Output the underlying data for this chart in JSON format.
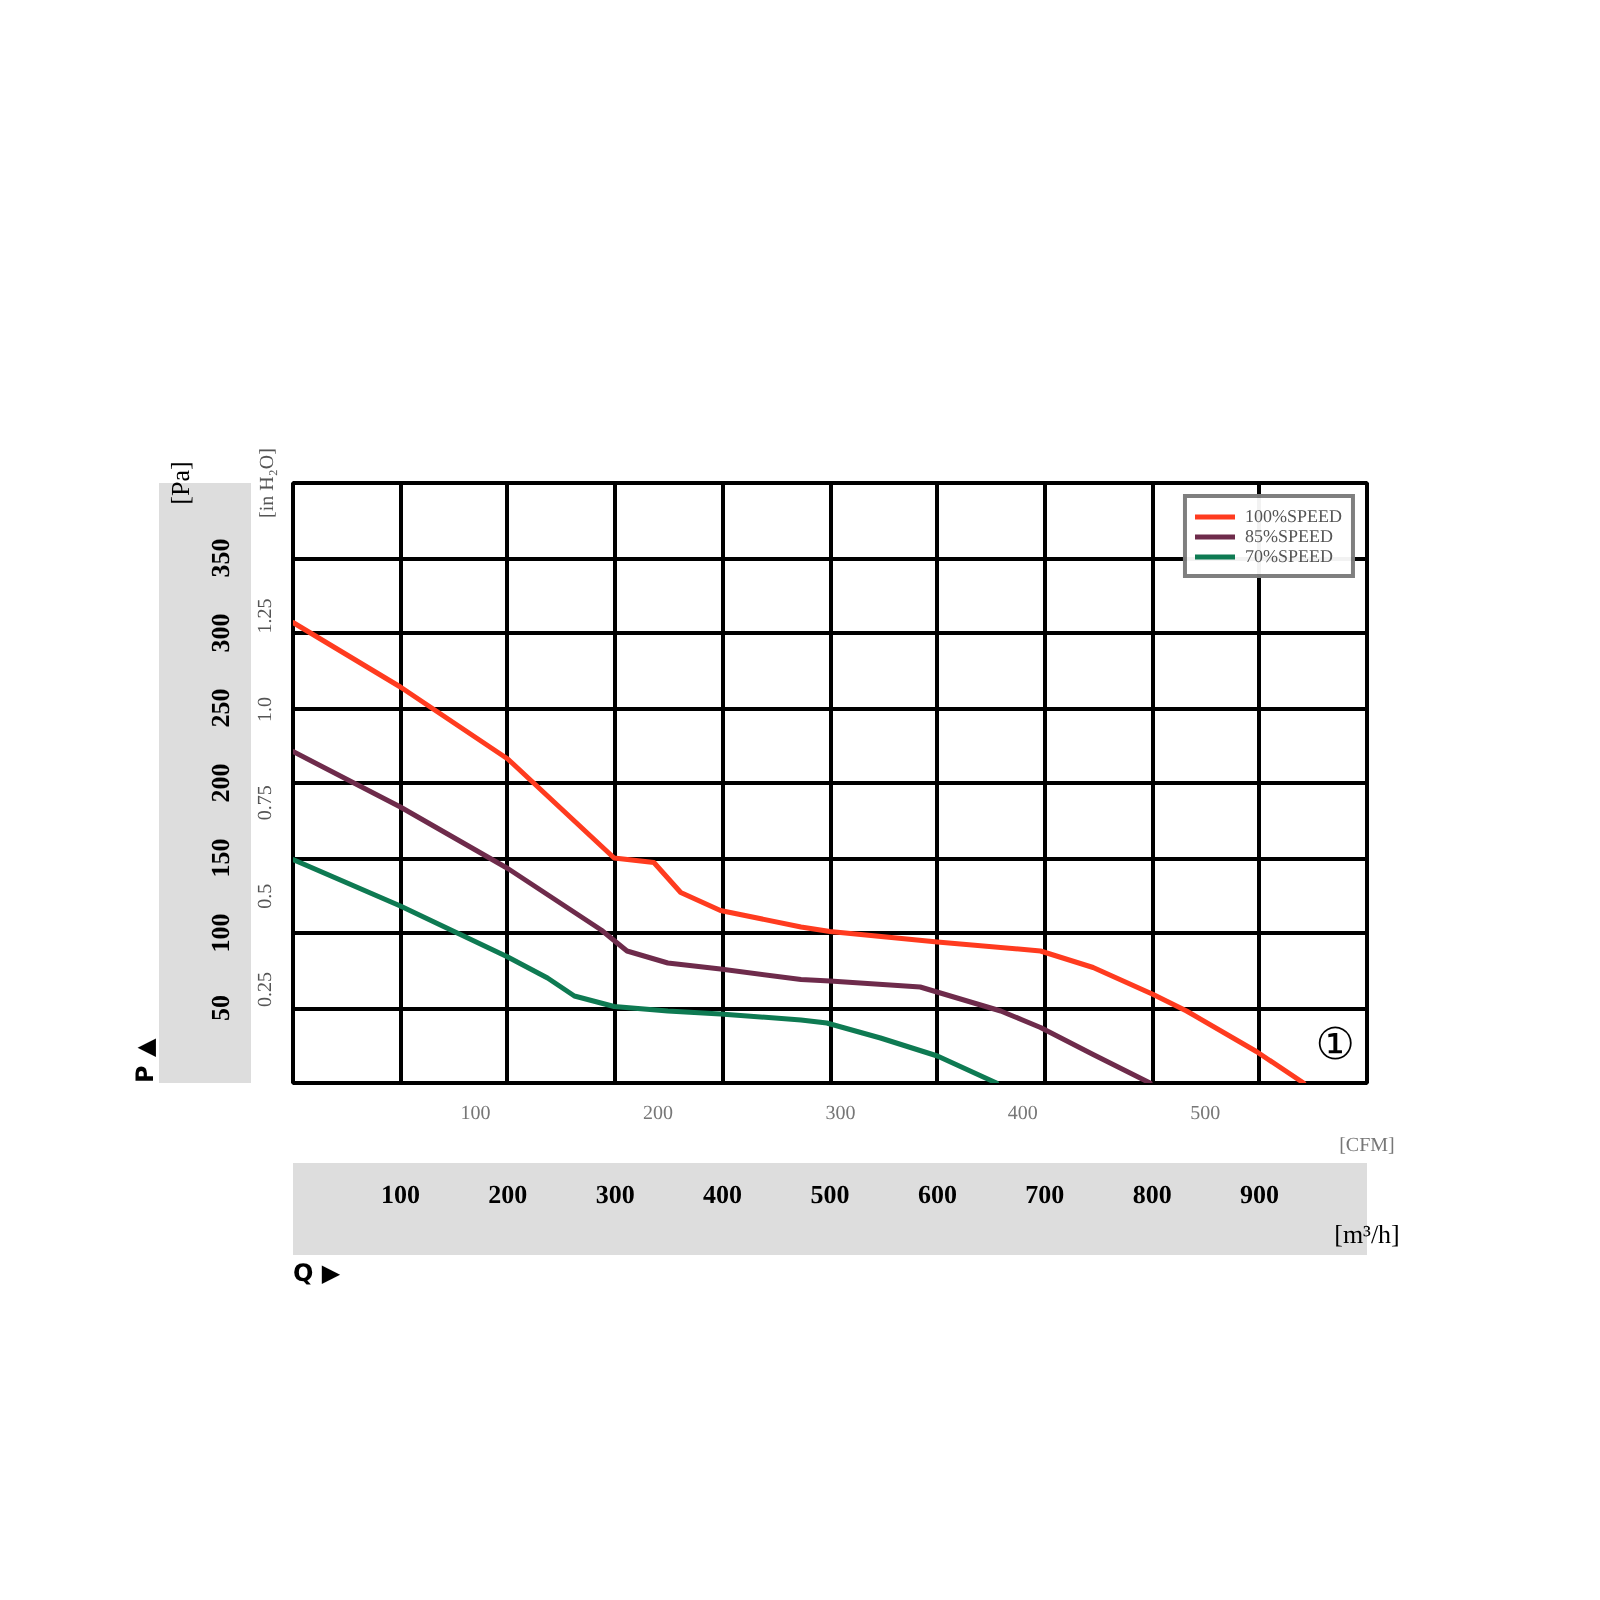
{
  "chart_data": {
    "type": "line",
    "xlabel": "[m³/h]",
    "ylabel": "[Pa]",
    "x2label": "[CFM]",
    "y2label": "[in H₂O]",
    "xlim": [
      0,
      1000
    ],
    "xticks": [
      100,
      200,
      300,
      400,
      500,
      600,
      700,
      800,
      900
    ],
    "ylim": [
      0,
      400
    ],
    "yticks": [
      50,
      100,
      150,
      200,
      250,
      300,
      350
    ],
    "x2lim": [
      0,
      588.6
    ],
    "x2ticks": [
      100,
      200,
      300,
      400,
      500
    ],
    "y2lim": [
      0,
      1.606
    ],
    "y2ticks": [
      0.25,
      0.5,
      0.75,
      {
        "value": 1,
        "label": "1.0"
      },
      1.25
    ],
    "grid": true,
    "legend": "top right",
    "line_style": "solid",
    "marker": "none",
    "annotations": [
      "①",
      "P ▲",
      "Q ▶"
    ],
    "series": [
      {
        "name": "100%SPEED",
        "color": "#ff3b1f",
        "x": [
          0,
          100,
          200,
          299,
          336,
          361,
          398,
          473,
          500,
          600,
          696,
          745,
          801,
          832,
          897,
          941
        ],
        "values": [
          307,
          264,
          216,
          150,
          147,
          127,
          115,
          104,
          101,
          94,
          88,
          77,
          59,
          48,
          21,
          0
        ]
      },
      {
        "name": "85%SPEED",
        "color": "#6e2b4b",
        "x": [
          0,
          100,
          200,
          287,
          311,
          349,
          398,
          473,
          500,
          584,
          659,
          696,
          745,
          798
        ],
        "values": [
          221,
          184,
          143,
          102,
          88,
          80,
          76,
          69,
          68,
          64,
          48,
          37,
          19,
          0
        ]
      },
      {
        "name": "70%SPEED",
        "color": "#0e7a52",
        "x": [
          0,
          100,
          200,
          237,
          262,
          299,
          349,
          398,
          473,
          497,
          547,
          600,
          655
        ],
        "values": [
          149,
          118,
          84,
          70,
          58,
          51,
          48,
          46,
          42,
          40,
          30,
          18,
          0
        ]
      }
    ]
  }
}
